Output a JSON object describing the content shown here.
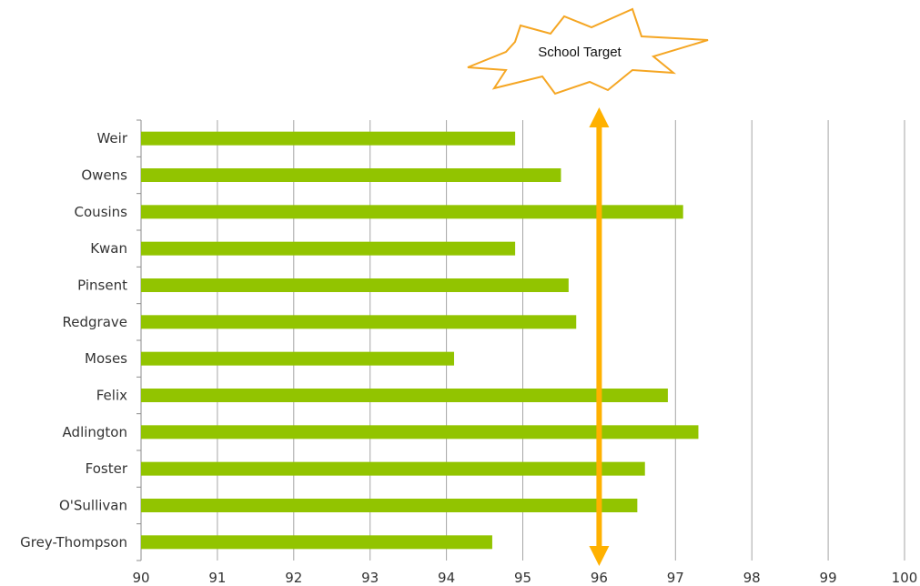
{
  "chart_data": {
    "type": "bar",
    "orientation": "horizontal",
    "categories": [
      "Weir",
      "Owens",
      "Cousins",
      "Kwan",
      "Pinsent",
      "Redgrave",
      "Moses",
      "Felix",
      "Adlington",
      "Foster",
      "O'Sullivan",
      "Grey-Thompson"
    ],
    "values": [
      94.9,
      95.5,
      97.1,
      94.9,
      95.6,
      95.7,
      94.1,
      96.9,
      97.3,
      96.6,
      96.5,
      94.6
    ],
    "xlim": [
      90,
      100
    ],
    "xticks": [
      "90",
      "91",
      "92",
      "93",
      "94",
      "95",
      "96",
      "97",
      "98",
      "99",
      "100"
    ],
    "grid": true,
    "bar_color": "#92c400",
    "annotation": {
      "label": "School Target",
      "value": 96,
      "color": "#ffb100",
      "burst_color": "#f5a623"
    }
  }
}
